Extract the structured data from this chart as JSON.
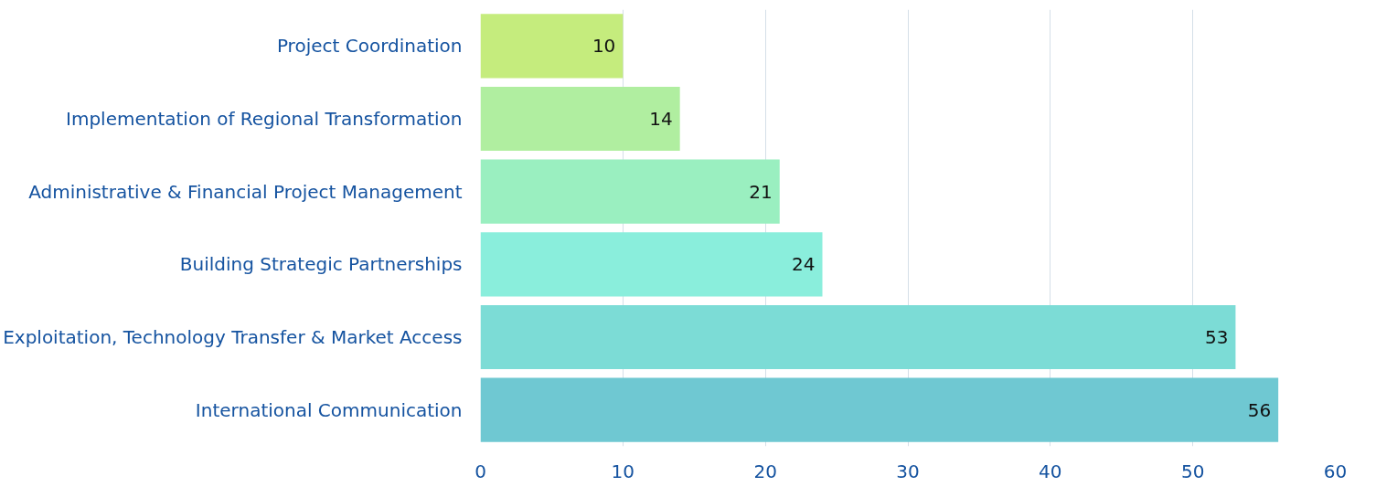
{
  "chart_data": {
    "type": "bar",
    "orientation": "horizontal",
    "categories": [
      "Project Coordination",
      "Implementation of Regional Transformation",
      "Administrative & Financial Project Management",
      "Building Strategic Partnerships",
      "Exploitation, Technology Transfer & Market Access",
      "International Communication"
    ],
    "values": [
      10,
      14,
      21,
      24,
      53,
      56
    ],
    "colors": [
      "#c5ec7d",
      "#b0eea0",
      "#9aefc0",
      "#8aeedc",
      "#7cdcd6",
      "#6fc8d2"
    ],
    "xlim": [
      0,
      60
    ],
    "xticks": [
      0,
      10,
      20,
      30,
      40,
      50,
      60
    ],
    "grid": "x",
    "data_labels": true
  }
}
